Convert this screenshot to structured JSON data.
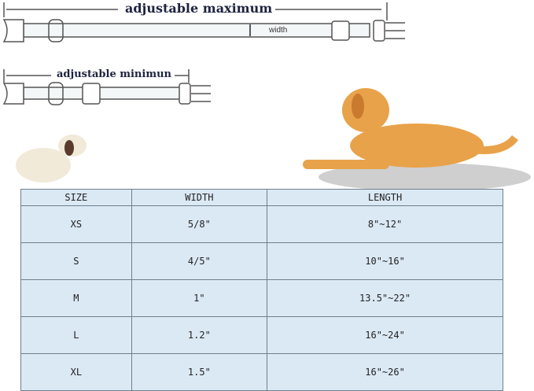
{
  "diagram": {
    "max_label": "adjustable maximum",
    "min_label": "adjustable minimun",
    "width_label": "width"
  },
  "table": {
    "headers": [
      "SIZE",
      "WIDTH",
      "LENGTH"
    ],
    "rows": [
      [
        "XS",
        "5/8\"",
        "8\"~12\""
      ],
      [
        "S",
        "4/5\"",
        "10\"~16\""
      ],
      [
        "M",
        "1\"",
        "13.5\"~22\""
      ],
      [
        "L",
        "1.2\"",
        "16\"~24\""
      ],
      [
        "XL",
        "1.5\"",
        "16\"~26\""
      ]
    ]
  },
  "colors": {
    "table_bg": "#dbe9f5",
    "label": "#1e2340",
    "dog": "#e8a24a"
  }
}
